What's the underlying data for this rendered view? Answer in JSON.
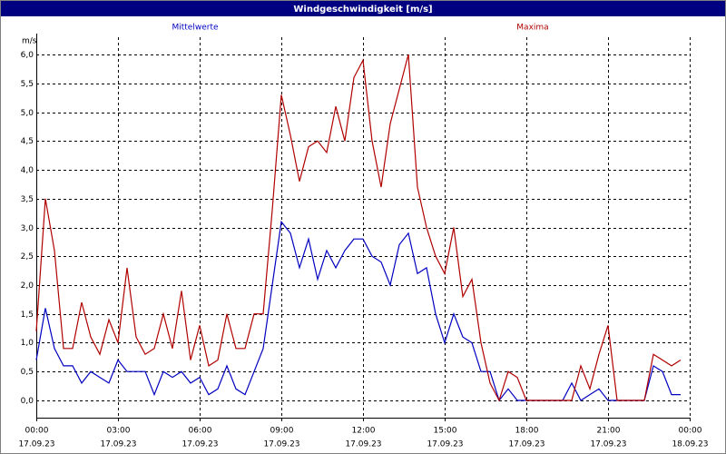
{
  "chart_data": {
    "type": "line",
    "title": "Windgeschwindigkeit [m/s]",
    "ylabel": "m/s",
    "xlim": [
      0,
      1440
    ],
    "ylim": [
      -0.3,
      6.3
    ],
    "grid": true,
    "yticks": [
      {
        "value": 0,
        "label": "0,0"
      },
      {
        "value": 0.5,
        "label": "0,5"
      },
      {
        "value": 1,
        "label": "1,0"
      },
      {
        "value": 1.5,
        "label": "1,5"
      },
      {
        "value": 2,
        "label": "2,0"
      },
      {
        "value": 2.5,
        "label": "2,5"
      },
      {
        "value": 3,
        "label": "3,0"
      },
      {
        "value": 3.5,
        "label": "3,5"
      },
      {
        "value": 4,
        "label": "4,0"
      },
      {
        "value": 4.5,
        "label": "4,5"
      },
      {
        "value": 5,
        "label": "5,0"
      },
      {
        "value": 5.5,
        "label": "5,5"
      },
      {
        "value": 6,
        "label": "6,0"
      }
    ],
    "xticks": [
      {
        "value": 0,
        "label": "00:00",
        "date": "17.09.23"
      },
      {
        "value": 180,
        "label": "03:00",
        "date": "17.09.23"
      },
      {
        "value": 360,
        "label": "06:00",
        "date": "17.09.23"
      },
      {
        "value": 540,
        "label": "09:00",
        "date": "17.09.23"
      },
      {
        "value": 720,
        "label": "12:00",
        "date": "17.09.23"
      },
      {
        "value": 900,
        "label": "15:00",
        "date": "17.09.23"
      },
      {
        "value": 1080,
        "label": "18:00",
        "date": "17.09.23"
      },
      {
        "value": 1260,
        "label": "21:00",
        "date": "17.09.23"
      },
      {
        "value": 1440,
        "label": "00:00",
        "date": "18.09.23"
      }
    ],
    "x": [
      0,
      20,
      40,
      60,
      80,
      100,
      120,
      140,
      160,
      180,
      200,
      220,
      240,
      260,
      280,
      300,
      320,
      340,
      360,
      380,
      400,
      420,
      440,
      460,
      480,
      500,
      520,
      540,
      560,
      580,
      600,
      620,
      640,
      660,
      680,
      700,
      720,
      740,
      760,
      780,
      800,
      820,
      840,
      860,
      880,
      900,
      920,
      940,
      960,
      980,
      1000,
      1020,
      1040,
      1060,
      1080,
      1100,
      1120,
      1140,
      1160,
      1180,
      1200,
      1220,
      1240,
      1260,
      1280,
      1300,
      1320,
      1340,
      1360,
      1380,
      1400,
      1420
    ],
    "series": [
      {
        "name": "Mittelwerte",
        "color": "#0000c0",
        "values": [
          0.7,
          1.6,
          0.9,
          0.6,
          0.6,
          0.3,
          0.5,
          0.4,
          0.3,
          0.7,
          0.5,
          0.5,
          0.5,
          0.1,
          0.5,
          0.4,
          0.5,
          0.3,
          0.4,
          0.1,
          0.2,
          0.6,
          0.2,
          0.1,
          0.5,
          0.9,
          2.0,
          3.1,
          2.9,
          2.3,
          2.8,
          2.1,
          2.6,
          2.3,
          2.6,
          2.8,
          2.8,
          2.5,
          2.4,
          2.0,
          2.7,
          2.9,
          2.2,
          2.3,
          1.5,
          1.0,
          1.5,
          1.1,
          1.0,
          0.5,
          0.5,
          0.0,
          0.2,
          0.0,
          0.0,
          0.0,
          0.0,
          0.0,
          0.0,
          0.3,
          0.0,
          0.1,
          0.2,
          0.0,
          0.0,
          0.0,
          0.0,
          0.0,
          0.6,
          0.5,
          0.1,
          0.1
        ]
      },
      {
        "name": "Maxima",
        "color": "#b00000",
        "values": [
          1.2,
          3.5,
          2.6,
          0.9,
          0.9,
          1.7,
          1.1,
          0.8,
          1.4,
          1.0,
          2.3,
          1.1,
          0.8,
          0.9,
          1.5,
          0.9,
          1.9,
          0.7,
          1.3,
          0.6,
          0.7,
          1.5,
          0.9,
          0.9,
          1.5,
          1.5,
          3.3,
          5.3,
          4.6,
          3.8,
          4.4,
          4.5,
          4.3,
          5.1,
          4.5,
          5.6,
          5.9,
          4.5,
          3.7,
          4.8,
          5.4,
          6.0,
          3.7,
          3.0,
          2.5,
          2.2,
          3.0,
          1.8,
          2.1,
          1.0,
          0.3,
          0.0,
          0.5,
          0.4,
          0.0,
          0.0,
          0.0,
          0.0,
          0.0,
          0.0,
          0.6,
          0.2,
          0.8,
          1.3,
          0.0,
          0.0,
          0.0,
          0.0,
          0.8,
          0.7,
          0.6,
          0.7
        ]
      }
    ]
  }
}
